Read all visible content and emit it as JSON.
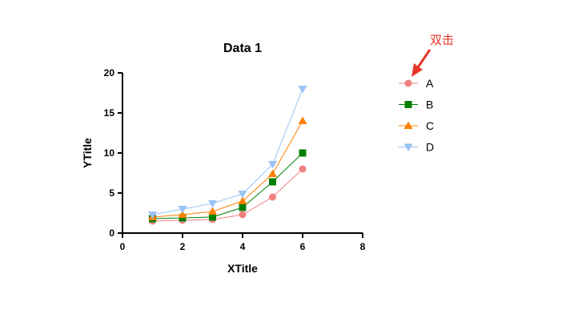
{
  "chart_data": {
    "type": "line",
    "title": "Data 1",
    "xlabel": "XTitle",
    "ylabel": "YTitle",
    "xlim": [
      0,
      8
    ],
    "ylim": [
      0,
      20
    ],
    "xticks": [
      "0",
      "2",
      "4",
      "6",
      "8"
    ],
    "yticks": [
      "0",
      "5",
      "10",
      "15",
      "20"
    ],
    "x": [
      1,
      2,
      3,
      4,
      5,
      6
    ],
    "series": [
      {
        "name": "A",
        "marker": "circle",
        "color": "#f08080",
        "values": [
          1.5,
          1.6,
          1.7,
          2.3,
          4.5,
          8
        ]
      },
      {
        "name": "B",
        "marker": "square",
        "color": "#008000",
        "values": [
          1.8,
          1.9,
          2.0,
          3.2,
          6.4,
          10
        ]
      },
      {
        "name": "C",
        "marker": "triangle-up",
        "color": "#ff8000",
        "values": [
          2.0,
          2.3,
          2.7,
          4.0,
          7.4,
          14
        ]
      },
      {
        "name": "D",
        "marker": "triangle-down",
        "color": "#99c2f5",
        "values": [
          2.3,
          3.0,
          3.7,
          4.9,
          8.6,
          18
        ]
      }
    ],
    "legend": "right",
    "grid": false
  },
  "annotation": {
    "text": "双击",
    "color": "#e8352a"
  }
}
